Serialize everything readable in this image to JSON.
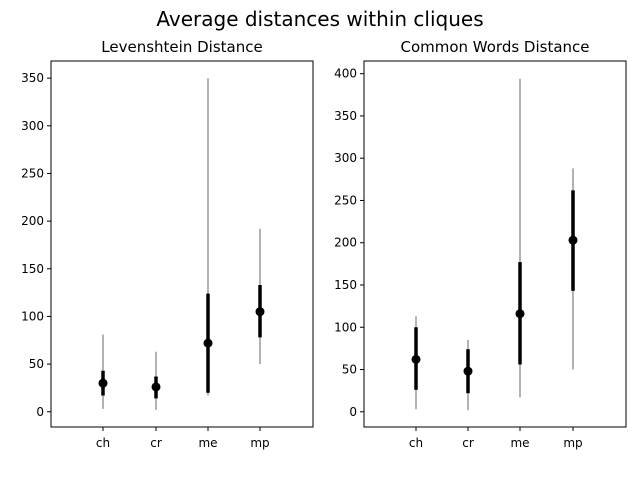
{
  "figure": {
    "title": "Average distances within cliques"
  },
  "chart_data": [
    {
      "type": "errorbar",
      "title": "Levenshtein Distance",
      "categories": [
        "ch",
        "cr",
        "me",
        "mp"
      ],
      "ylim": [
        -16,
        368
      ],
      "yticks": [
        0,
        50,
        100,
        150,
        200,
        250,
        300,
        350
      ],
      "points": [
        {
          "category": "ch",
          "median": 30,
          "q1": 17,
          "q3": 43,
          "min": 3,
          "max": 81
        },
        {
          "category": "cr",
          "median": 26,
          "q1": 14,
          "q3": 37,
          "min": 2,
          "max": 63
        },
        {
          "category": "me",
          "median": 72,
          "q1": 20,
          "q3": 124,
          "min": 17,
          "max": 350
        },
        {
          "category": "mp",
          "median": 105,
          "q1": 78,
          "q3": 133,
          "min": 50,
          "max": 192
        }
      ],
      "colors": {
        "whisker": "#808080",
        "box": "#000000",
        "marker": "#000000"
      }
    },
    {
      "type": "errorbar",
      "title": "Common Words Distance",
      "categories": [
        "ch",
        "cr",
        "me",
        "mp"
      ],
      "ylim": [
        -18,
        415
      ],
      "yticks": [
        0,
        50,
        100,
        150,
        200,
        250,
        300,
        350,
        400
      ],
      "points": [
        {
          "category": "ch",
          "median": 62,
          "q1": 26,
          "q3": 100,
          "min": 3,
          "max": 113
        },
        {
          "category": "cr",
          "median": 48,
          "q1": 22,
          "q3": 74,
          "min": 2,
          "max": 85
        },
        {
          "category": "me",
          "median": 116,
          "q1": 56,
          "q3": 177,
          "min": 17,
          "max": 394
        },
        {
          "category": "mp",
          "median": 203,
          "q1": 143,
          "q3": 262,
          "min": 50,
          "max": 288
        }
      ],
      "colors": {
        "whisker": "#808080",
        "box": "#000000",
        "marker": "#000000"
      }
    }
  ]
}
